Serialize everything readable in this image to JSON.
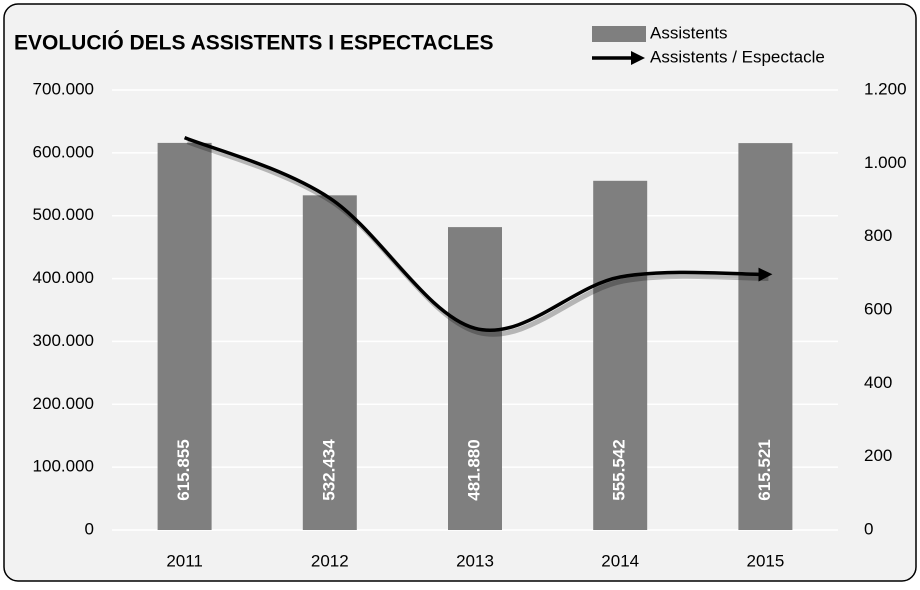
{
  "chart_data": {
    "type": "bar",
    "title": "EVOLUCIÓ DELS ASSISTENTS I ESPECTACLES",
    "categories": [
      "2011",
      "2012",
      "2013",
      "2014",
      "2015"
    ],
    "series": [
      {
        "name": "Assistents",
        "type": "bar",
        "color": "#7f7f7f",
        "values": [
          615855,
          532434,
          481880,
          555542,
          615521
        ],
        "value_labels": [
          "615.855",
          "532.434",
          "481.880",
          "555.542",
          "615.521"
        ]
      },
      {
        "name": "Assistents / Espectacle",
        "type": "line",
        "axis": "y2",
        "color": "#000000",
        "values": [
          1070,
          905,
          550,
          690,
          697
        ]
      }
    ],
    "ylim": [
      0,
      700000
    ],
    "yticks": [
      0,
      {
        "value": 100000,
        "label": "100.000"
      },
      {
        "value": 200000,
        "label": "200.000"
      },
      {
        "value": 300000,
        "label": "300.000"
      },
      {
        "value": 400000,
        "label": "400.000"
      },
      {
        "value": 500000,
        "label": "500.000"
      },
      {
        "value": 600000,
        "label": "600.000"
      },
      {
        "value": 700000,
        "label": "700.000"
      }
    ],
    "y2lim": [
      0,
      1200
    ],
    "y2ticks": [
      0,
      200,
      400,
      600,
      800,
      {
        "value": 1000,
        "label": "1.000"
      },
      {
        "value": 1200,
        "label": "1.200"
      }
    ],
    "grid": true,
    "legend": "top-right"
  }
}
